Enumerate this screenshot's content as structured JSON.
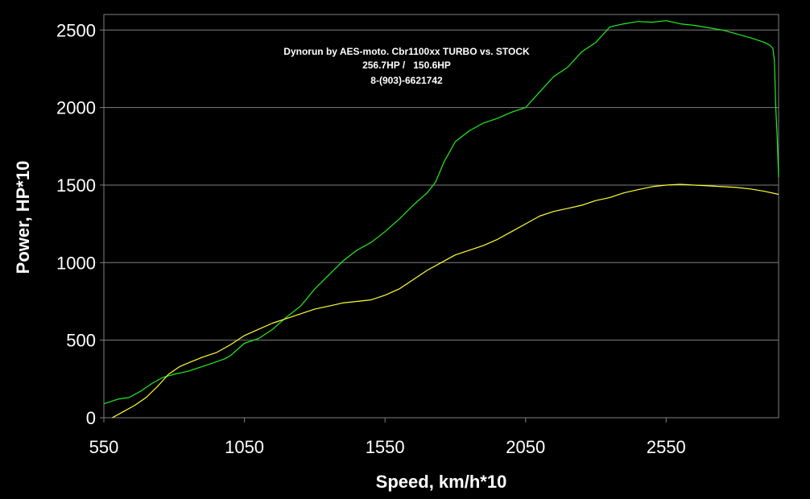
{
  "chart_data": {
    "type": "line",
    "title": "",
    "xlabel": "Speed, km/h*10",
    "ylabel": "Power, HP*10",
    "xlim": [
      550,
      2950
    ],
    "ylim": [
      0,
      2600
    ],
    "xticks": [
      "550",
      "1050",
      "1550",
      "2050",
      "2550"
    ],
    "xtick_values": [
      550,
      1050,
      1550,
      2050,
      2550
    ],
    "yticks": [
      "0",
      "500",
      "1000",
      "1500",
      "2000",
      "2500"
    ],
    "ytick_values": [
      0,
      500,
      1000,
      1500,
      2000,
      2500
    ],
    "grid": "horizontal",
    "background": "#000000",
    "plot_border": "#808080",
    "gridline_color": "#808080",
    "annotation": {
      "line1": "Dynorun by AES-moto. Cbr1100xx TURBO vs. STOCK",
      "line2": "256.7HP /   150.6HP",
      "line3": "8-(903)-6621742"
    },
    "series": [
      {
        "color": "#22ee22",
        "x": [
          550,
          600,
          640,
          680,
          720,
          760,
          800,
          850,
          900,
          950,
          980,
          1000,
          1050,
          1100,
          1150,
          1200,
          1250,
          1300,
          1350,
          1400,
          1450,
          1500,
          1550,
          1600,
          1650,
          1700,
          1730,
          1760,
          1800,
          1850,
          1900,
          1950,
          2000,
          2050,
          2100,
          2150,
          2200,
          2250,
          2300,
          2350,
          2400,
          2450,
          2500,
          2550,
          2600,
          2650,
          2700,
          2750,
          2800,
          2850,
          2900,
          2920,
          2930,
          2935,
          2940,
          2945,
          2950
        ],
        "y": [
          90,
          120,
          130,
          170,
          220,
          260,
          280,
          300,
          330,
          360,
          380,
          400,
          480,
          510,
          570,
          650,
          720,
          830,
          920,
          1010,
          1080,
          1130,
          1200,
          1280,
          1370,
          1450,
          1520,
          1650,
          1780,
          1850,
          1900,
          1930,
          1970,
          2000,
          2100,
          2200,
          2260,
          2360,
          2420,
          2520,
          2540,
          2555,
          2550,
          2560,
          2540,
          2530,
          2515,
          2500,
          2475,
          2450,
          2420,
          2400,
          2380,
          2300,
          2000,
          1800,
          1550
        ]
      },
      {
        "color": "#ffff33",
        "x": [
          580,
          620,
          660,
          700,
          740,
          780,
          820,
          860,
          900,
          950,
          1000,
          1050,
          1100,
          1150,
          1200,
          1250,
          1300,
          1350,
          1400,
          1450,
          1500,
          1550,
          1600,
          1650,
          1700,
          1750,
          1800,
          1850,
          1900,
          1950,
          2000,
          2050,
          2100,
          2150,
          2200,
          2250,
          2300,
          2350,
          2400,
          2450,
          2500,
          2550,
          2600,
          2650,
          2700,
          2750,
          2800,
          2850,
          2900,
          2950
        ],
        "y": [
          0,
          40,
          80,
          130,
          200,
          280,
          330,
          360,
          390,
          420,
          470,
          530,
          570,
          610,
          640,
          670,
          700,
          720,
          740,
          750,
          760,
          790,
          830,
          890,
          950,
          1000,
          1050,
          1080,
          1110,
          1150,
          1200,
          1250,
          1300,
          1330,
          1350,
          1370,
          1400,
          1420,
          1450,
          1470,
          1490,
          1500,
          1505,
          1500,
          1495,
          1490,
          1485,
          1475,
          1460,
          1440
        ]
      }
    ]
  }
}
